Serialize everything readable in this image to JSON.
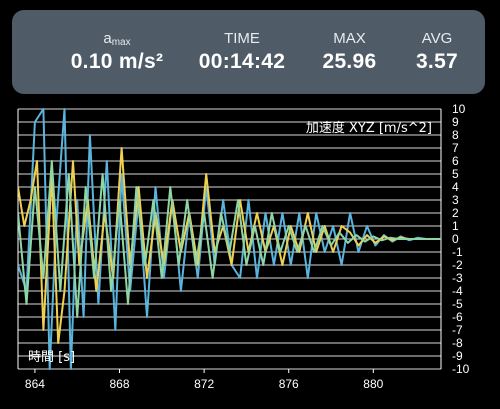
{
  "stats": {
    "amax": {
      "label": "a",
      "label_sub": "max",
      "value": "0.10 m/s²"
    },
    "time": {
      "label": "TIME",
      "value": "00:14:42"
    },
    "max": {
      "label": "MAX",
      "value": "25.96"
    },
    "avg": {
      "label": "AVG",
      "value": "3.57"
    }
  },
  "colors": {
    "panel_bg": "#4f5b66",
    "background": "#000000",
    "grid": "#ffffff",
    "series_x": "#5ab4dc",
    "series_y": "#f0d050",
    "series_z": "#8fd6a6"
  },
  "chart_data": {
    "type": "line",
    "y_axis_label": "加速度 XYZ [m/s^2]",
    "x_axis_label": "時間 [s]",
    "xlim": [
      863.2,
      883.2
    ],
    "ylim": [
      -10,
      10
    ],
    "x_ticks": [
      "864",
      "868",
      "872",
      "876",
      "880"
    ],
    "y_ticks": [
      "10",
      "9",
      "8",
      "7",
      "6",
      "5",
      "4",
      "3",
      "2",
      "1",
      "0",
      "-1",
      "-2",
      "-3",
      "-4",
      "-5",
      "-6",
      "-7",
      "-8",
      "-9",
      "-10"
    ],
    "grid": "horizontal",
    "series": [
      {
        "color": "#5ab4dc",
        "x": [
          863.2,
          863.6,
          864.0,
          864.4,
          864.7,
          865.0,
          865.4,
          865.7,
          866.0,
          866.3,
          866.6,
          867.0,
          867.4,
          867.8,
          868.1,
          868.5,
          868.9,
          869.3,
          869.7,
          870.1,
          870.5,
          870.9,
          871.3,
          871.7,
          872.1,
          872.5,
          872.9,
          873.3,
          873.7,
          874.1,
          874.5,
          874.9,
          875.3,
          875.7,
          876.1,
          876.5,
          876.9,
          877.3,
          877.7,
          878.1,
          878.5,
          878.9,
          879.3,
          879.7,
          880.1,
          880.5,
          880.9,
          881.3,
          881.7,
          882.1,
          882.5,
          883.2
        ],
        "values": [
          -2,
          -4,
          9,
          10,
          -10,
          1,
          10,
          -10,
          3,
          -6,
          8,
          -5,
          6,
          -7,
          5,
          -4,
          3,
          -6,
          4,
          -3,
          3,
          -4,
          2,
          -3,
          4,
          -2,
          3,
          -2,
          -3,
          3,
          -3,
          2,
          -2,
          2,
          -2,
          2,
          -3,
          2,
          -1,
          1,
          -2,
          2,
          -1,
          1,
          -0.5,
          0.3,
          -0.2,
          0.2,
          -0.1,
          0.1,
          0,
          0
        ]
      },
      {
        "color": "#f0d050",
        "x": [
          863.2,
          863.5,
          863.8,
          864.1,
          864.4,
          864.8,
          865.1,
          865.4,
          865.8,
          866.1,
          866.5,
          866.9,
          867.3,
          867.7,
          868.1,
          868.5,
          868.9,
          869.3,
          869.7,
          870.1,
          870.5,
          870.9,
          871.3,
          871.7,
          872.1,
          872.5,
          872.9,
          873.3,
          873.7,
          874.1,
          874.5,
          874.9,
          875.3,
          875.7,
          876.1,
          876.5,
          876.9,
          877.3,
          877.7,
          878.1,
          878.5,
          878.9,
          879.3,
          879.7,
          880.1,
          880.5,
          880.9,
          881.3,
          881.7,
          882.1,
          882.5,
          883.2
        ],
        "values": [
          4,
          1,
          3,
          6,
          -7,
          5,
          -8,
          -4,
          6,
          -2,
          3,
          -4,
          2,
          -3,
          7,
          -2,
          4,
          -3,
          2,
          -2,
          3,
          -1,
          2,
          -2,
          5,
          -1,
          1,
          -2,
          3,
          -1,
          2,
          -1,
          1,
          -2,
          1,
          -1,
          2,
          -1,
          1,
          -1,
          1,
          0.5,
          -0.5,
          0.3,
          -0.3,
          0.2,
          -0.1,
          0.1,
          0,
          0,
          0,
          0
        ]
      },
      {
        "color": "#8fd6a6",
        "x": [
          863.2,
          863.6,
          864.0,
          864.4,
          864.8,
          865.2,
          865.6,
          866.0,
          866.4,
          866.8,
          867.2,
          867.6,
          868.0,
          868.4,
          868.8,
          869.2,
          869.6,
          870.0,
          870.4,
          870.8,
          871.2,
          871.6,
          872.0,
          872.4,
          872.8,
          873.2,
          873.6,
          874.0,
          874.4,
          874.8,
          875.2,
          875.6,
          876.0,
          876.4,
          876.8,
          877.2,
          877.6,
          878.0,
          878.4,
          878.8,
          879.2,
          879.6,
          880.0,
          880.4,
          880.8,
          881.2,
          881.6,
          882.0,
          882.4,
          883.2
        ],
        "values": [
          2,
          -5,
          4,
          -3,
          6,
          -4,
          5,
          -6,
          4,
          -3,
          5,
          -4,
          3,
          -5,
          4,
          -2,
          3,
          -3,
          4,
          -2,
          3,
          -2,
          2,
          -3,
          2,
          -1,
          3,
          -2,
          1,
          -2,
          2,
          -1,
          1,
          -1,
          1,
          -1,
          1,
          -0.5,
          0.5,
          -0.3,
          0.3,
          -0.2,
          0.2,
          -0.1,
          0.1,
          0,
          0,
          0,
          0,
          0
        ]
      }
    ]
  }
}
